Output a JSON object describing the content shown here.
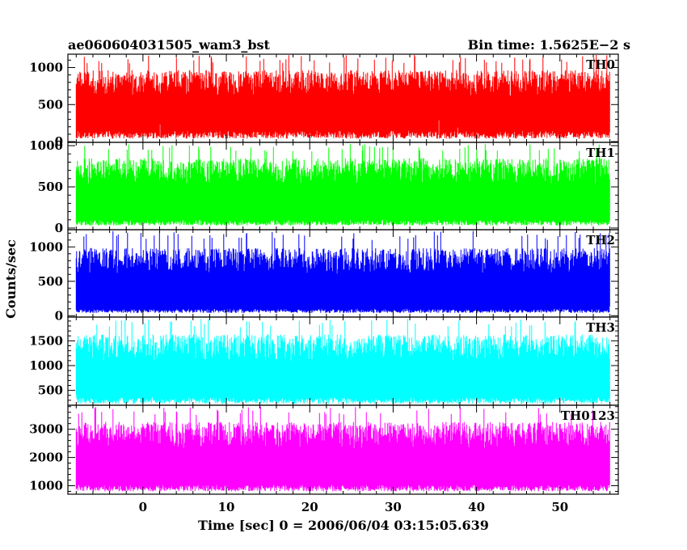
{
  "header": {
    "left_title": "ae060604031505_wam3_bst",
    "right_title": "Bin time: 1.5625E−2 s"
  },
  "chart_data": {
    "type": "line",
    "xlabel": "Time [sec] 0 = 2006/06/04 03:15:05.639",
    "ylabel": "Counts/sec",
    "xlim": [
      -9,
      57
    ],
    "x_ticks": [
      0,
      10,
      20,
      30,
      40,
      50
    ],
    "x_data_range": [
      -8,
      56
    ],
    "panels": [
      {
        "name": "TH0",
        "color": "#ff0000",
        "ylim": [
          -10,
          1180
        ],
        "y_ticks": [
          0,
          500,
          1000
        ],
        "typical": [
          180,
          980
        ],
        "low_min": 40,
        "high_max": 1170
      },
      {
        "name": "TH1",
        "color": "#00ff00",
        "ylim": [
          -20,
          1040
        ],
        "y_ticks": [
          0,
          500,
          1000
        ],
        "typical": [
          120,
          860
        ],
        "low_min": 30,
        "high_max": 1020
      },
      {
        "name": "TH2",
        "color": "#0000ff",
        "ylim": [
          -20,
          1250
        ],
        "y_ticks": [
          0,
          500,
          1000
        ],
        "typical": [
          120,
          1000
        ],
        "low_min": 40,
        "high_max": 1240
      },
      {
        "name": "TH3",
        "color": "#00ffff",
        "ylim": [
          200,
          1980
        ],
        "y_ticks": [
          500,
          1000,
          1500
        ],
        "typical": [
          400,
          1650
        ],
        "low_min": 230,
        "high_max": 1950
      },
      {
        "name": "TH0123",
        "color": "#ff00ff",
        "ylim": [
          700,
          3850
        ],
        "y_ticks": [
          1000,
          2000,
          3000
        ],
        "typical": [
          1100,
          3300
        ],
        "low_min": 800,
        "high_max": 3800
      }
    ]
  }
}
